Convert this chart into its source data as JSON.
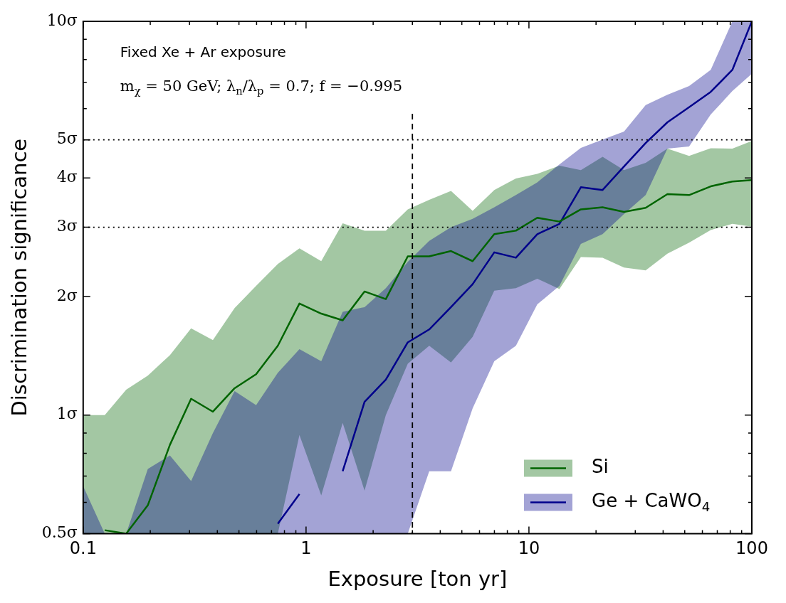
{
  "chart_data": {
    "type": "line",
    "xlabel": "Exposure [ton yr]",
    "ylabel": "Discrimination significance",
    "annotations": [
      "Fixed Xe + Ar exposure",
      "m$_{χ}$ = 50 GeV; λ$_{n}$/λ$_{p}$ = 0.7; f = −0.995"
    ],
    "x": [
      0.1,
      0.125,
      0.156,
      0.195,
      0.245,
      0.305,
      0.382,
      0.478,
      0.597,
      0.747,
      0.934,
      1.17,
      1.46,
      1.83,
      2.28,
      2.86,
      3.57,
      4.47,
      5.59,
      6.99,
      8.74,
      10.9,
      13.7,
      17.1,
      21.4,
      26.7,
      33.4,
      41.8,
      52.3,
      65.4,
      81.8,
      100
    ],
    "series": [
      {
        "name": "Si",
        "color": "#006400",
        "values": [
          null,
          0.51,
          0.5,
          0.59,
          0.84,
          1.1,
          1.02,
          1.17,
          1.27,
          1.5,
          1.92,
          1.81,
          1.74,
          2.06,
          1.97,
          2.53,
          2.53,
          2.61,
          2.46,
          2.88,
          2.94,
          3.17,
          3.1,
          3.33,
          3.37,
          3.28,
          3.36,
          3.64,
          3.62,
          3.81,
          3.92,
          3.95
        ],
        "upper": [
          1.0,
          1.0,
          1.16,
          1.26,
          1.42,
          1.66,
          1.55,
          1.87,
          2.13,
          2.42,
          2.65,
          2.46,
          3.07,
          2.94,
          2.94,
          3.33,
          3.52,
          3.71,
          3.3,
          3.73,
          3.99,
          4.1,
          4.3,
          4.19,
          4.53,
          4.19,
          4.37,
          4.75,
          4.55,
          4.76,
          4.75,
          4.97
        ],
        "lower": [
          0.5,
          0.5,
          0.5,
          0.5,
          0.5,
          0.5,
          0.5,
          0.5,
          0.5,
          0.5,
          0.89,
          0.625,
          0.955,
          0.643,
          1.0,
          1.35,
          1.5,
          1.36,
          1.58,
          2.07,
          2.1,
          2.22,
          2.09,
          2.52,
          2.51,
          2.37,
          2.33,
          2.57,
          2.74,
          2.95,
          3.06,
          3.01
        ]
      },
      {
        "name": "Ge + CaWO$_{4}$",
        "color": "#00008b",
        "values": [
          null,
          null,
          null,
          null,
          null,
          null,
          null,
          null,
          null,
          0.53,
          0.63,
          null,
          0.72,
          1.08,
          1.23,
          1.53,
          1.65,
          1.88,
          2.15,
          2.59,
          2.51,
          2.88,
          3.06,
          3.79,
          3.73,
          4.28,
          4.91,
          5.54,
          6.05,
          6.62,
          7.53,
          10
        ],
        "upper": [
          0.66,
          0.5,
          0.5,
          0.73,
          0.79,
          0.68,
          0.9,
          1.15,
          1.06,
          1.28,
          1.47,
          1.37,
          1.83,
          1.88,
          2.1,
          2.45,
          2.77,
          3.0,
          3.15,
          3.37,
          3.62,
          3.9,
          4.33,
          4.77,
          5.01,
          5.25,
          6.13,
          6.51,
          6.85,
          7.53,
          10,
          10
        ],
        "lower": [
          0.5,
          0.5,
          0.5,
          0.5,
          0.5,
          0.5,
          0.5,
          0.5,
          0.5,
          0.5,
          0.5,
          0.5,
          0.5,
          0.5,
          0.5,
          0.5,
          0.72,
          0.72,
          1.04,
          1.37,
          1.5,
          1.91,
          2.13,
          2.72,
          2.88,
          3.24,
          3.62,
          4.75,
          4.81,
          5.8,
          6.65,
          7.36
        ]
      }
    ],
    "log": "xy",
    "xlim": [
      0.1,
      100
    ],
    "ylim": [
      0.5,
      10
    ],
    "xticks": [
      0.1,
      {
        "value": 0.2,
        "label": null
      },
      {
        "value": 0.3,
        "label": null
      },
      {
        "value": 0.4,
        "label": null
      },
      {
        "value": 0.5,
        "label": null
      },
      {
        "value": 0.6,
        "label": null
      },
      {
        "value": 0.7,
        "label": null
      },
      {
        "value": 0.8,
        "label": null
      },
      {
        "value": 0.9,
        "label": null
      },
      1,
      {
        "value": 2,
        "label": null
      },
      {
        "value": 3,
        "label": null
      },
      {
        "value": 4,
        "label": null
      },
      {
        "value": 5,
        "label": null
      },
      {
        "value": 6,
        "label": null
      },
      {
        "value": 7,
        "label": null
      },
      {
        "value": 8,
        "label": null
      },
      {
        "value": 9,
        "label": null
      },
      10,
      {
        "value": 20,
        "label": null
      },
      {
        "value": 30,
        "label": null
      },
      {
        "value": 40,
        "label": null
      },
      {
        "value": 50,
        "label": null
      },
      {
        "value": 60,
        "label": null
      },
      {
        "value": 70,
        "label": null
      },
      {
        "value": 80,
        "label": null
      },
      {
        "value": 90,
        "label": null
      },
      100
    ],
    "yticks": [
      {
        "value": 0.5,
        "label": "0.5σ"
      },
      {
        "value": 0.6,
        "label": null
      },
      {
        "value": 0.7,
        "label": null
      },
      {
        "value": 0.8,
        "label": null
      },
      {
        "value": 0.9,
        "label": null
      },
      {
        "value": 1,
        "label": "1σ"
      },
      {
        "value": 2,
        "label": "2σ"
      },
      {
        "value": 3,
        "label": "3σ"
      },
      {
        "value": 4,
        "label": "4σ"
      },
      {
        "value": 5,
        "label": "5σ"
      },
      {
        "value": 6,
        "label": null
      },
      {
        "value": 7,
        "label": null
      },
      {
        "value": 8,
        "label": null
      },
      {
        "value": 9,
        "label": null
      },
      {
        "value": 10,
        "label": "10σ"
      }
    ],
    "ref_lines": [
      {
        "axis": "y",
        "value": 5,
        "line_style": "dotted"
      },
      {
        "axis": "y",
        "value": 3,
        "line_style": "dotted"
      },
      {
        "axis": "x",
        "value": 3,
        "line_style": "dashed"
      }
    ],
    "legend": "bottom right",
    "grid": false,
    "marker": "none",
    "line_style": "solid"
  }
}
